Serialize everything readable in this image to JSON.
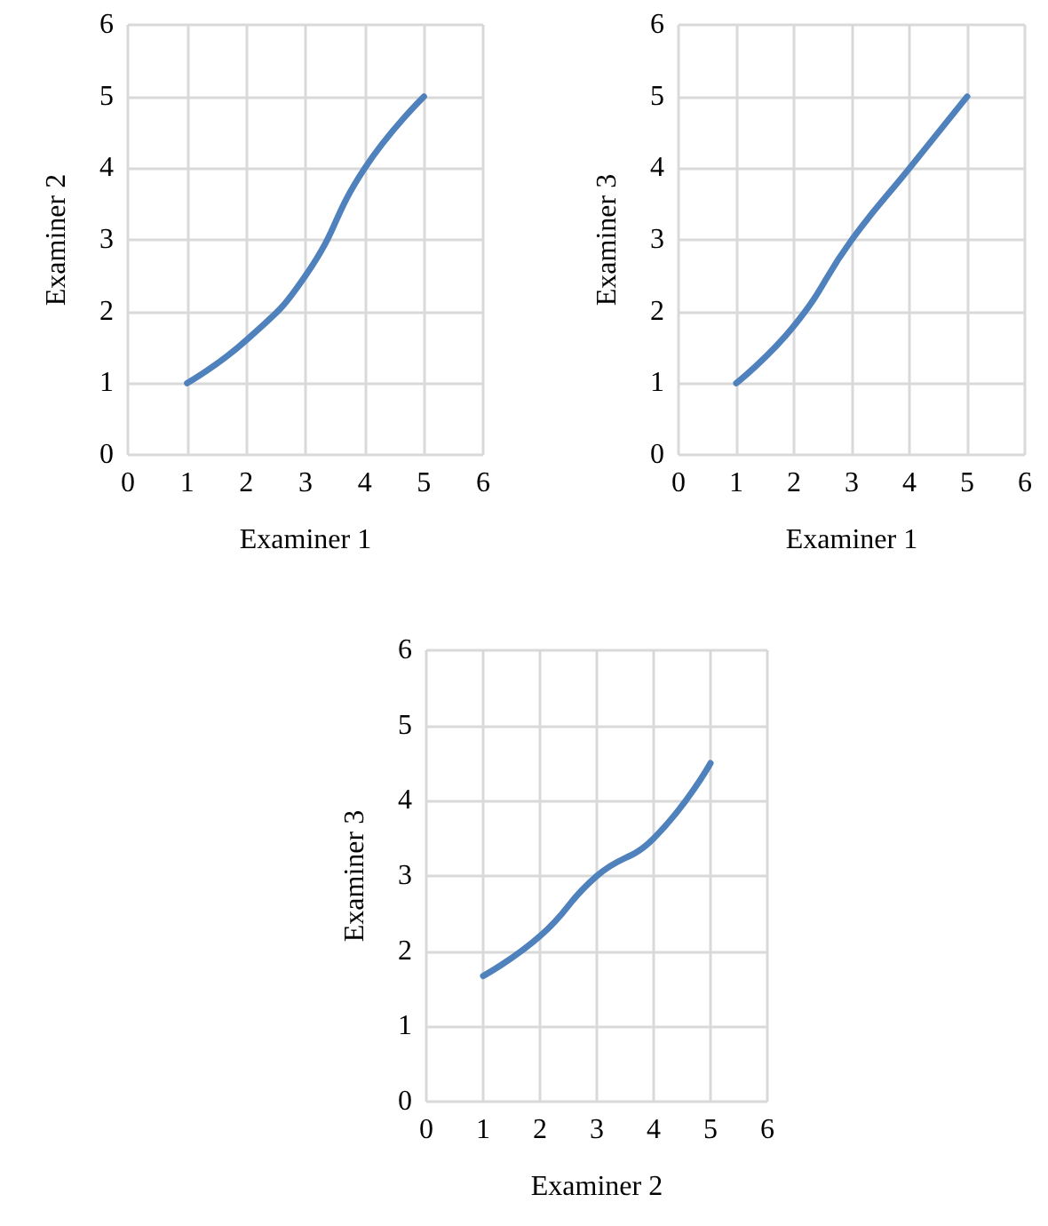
{
  "chart_data": [
    {
      "type": "line",
      "xlabel": "Examiner 1",
      "ylabel": "Examiner 2",
      "x": [
        1,
        2,
        3,
        4,
        5
      ],
      "series": [
        {
          "color": "#4f81bd",
          "values": [
            1,
            1.6,
            2.5,
            4,
            5
          ]
        }
      ],
      "xlim": [
        0,
        6
      ],
      "ylim": [
        0,
        6
      ],
      "xticks": [
        0,
        1,
        2,
        3,
        4,
        5,
        6
      ],
      "yticks": [
        0,
        1,
        2,
        3,
        4,
        5,
        6
      ],
      "grid": true,
      "marker": "none",
      "line_style": "solid"
    },
    {
      "type": "line",
      "xlabel": "Examiner 1",
      "ylabel": "Examiner 3",
      "x": [
        1,
        2,
        3,
        4,
        5
      ],
      "series": [
        {
          "color": "#4f81bd",
          "values": [
            1,
            1.8,
            3,
            4,
            5
          ]
        }
      ],
      "xlim": [
        0,
        6
      ],
      "ylim": [
        0,
        6
      ],
      "xticks": [
        0,
        1,
        2,
        3,
        4,
        5,
        6
      ],
      "yticks": [
        0,
        1,
        2,
        3,
        4,
        5,
        6
      ],
      "grid": true,
      "marker": "none",
      "line_style": "solid"
    },
    {
      "type": "line",
      "xlabel": "Examiner 2",
      "ylabel": "Examiner 3",
      "x": [
        1,
        2,
        3,
        4,
        5
      ],
      "series": [
        {
          "color": "#4f81bd",
          "values": [
            1.67,
            2.2,
            3,
            3.5,
            4.5
          ]
        }
      ],
      "xlim": [
        0,
        6
      ],
      "ylim": [
        0,
        6
      ],
      "xticks": [
        0,
        1,
        2,
        3,
        4,
        5,
        6
      ],
      "yticks": [
        0,
        1,
        2,
        3,
        4,
        5,
        6
      ],
      "grid": true,
      "marker": "none",
      "line_style": "solid"
    }
  ]
}
